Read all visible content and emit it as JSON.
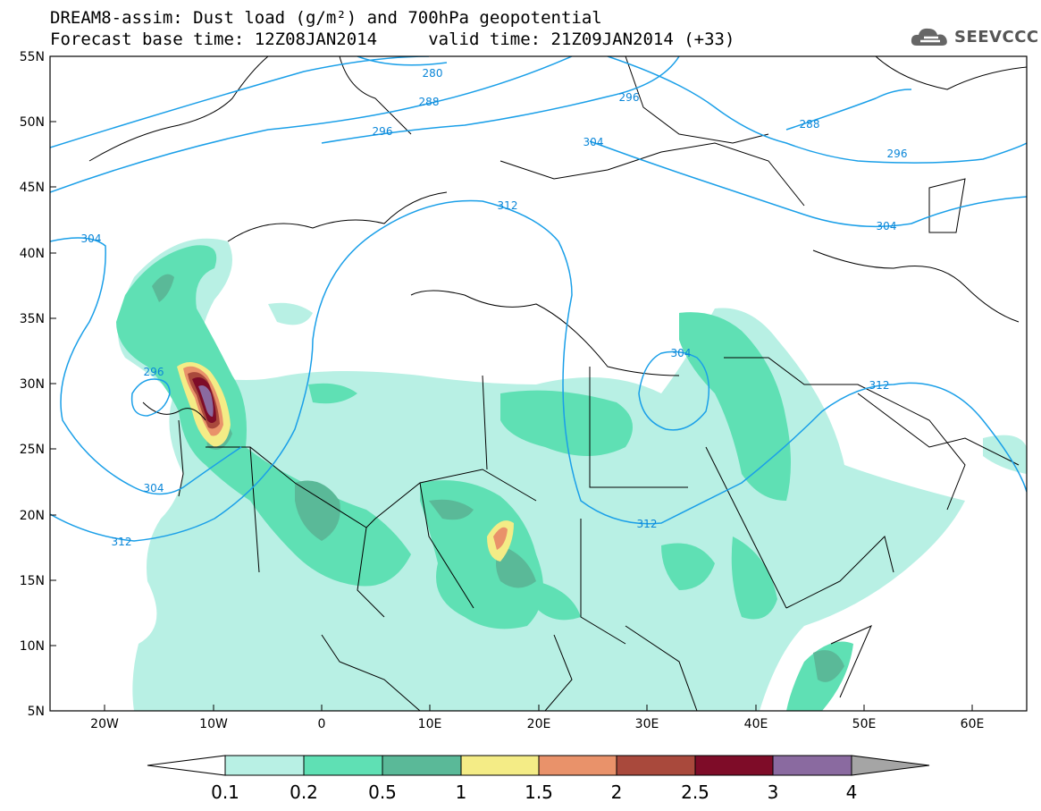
{
  "title": {
    "line1": "DREAM8-assim: Dust load (g/m²) and 700hPa geopotential",
    "line2": "Forecast base time: 12Z08JAN2014     valid time: 21Z09JAN2014 (+33)"
  },
  "logo": {
    "text": "SEEVCCC",
    "icon": "cloud-logo-icon"
  },
  "map": {
    "lat_labels": [
      "55N",
      "50N",
      "45N",
      "40N",
      "35N",
      "30N",
      "25N",
      "20N",
      "15N",
      "10N",
      "5N"
    ],
    "lon_labels": [
      "20W",
      "10W",
      "0",
      "10E",
      "20E",
      "30E",
      "40E",
      "50E",
      "60E"
    ],
    "contour_labels": [
      "280",
      "288",
      "296",
      "304",
      "312",
      "296",
      "288",
      "304",
      "296",
      "304",
      "312",
      "296",
      "304",
      "312",
      "312",
      "304",
      "312"
    ],
    "contour_color": "#1a9fe8"
  },
  "colorbar": {
    "labels": [
      "0.1",
      "0.2",
      "0.5",
      "1",
      "1.5",
      "2",
      "2.5",
      "3",
      "4"
    ],
    "colors": [
      "#ffffff",
      "#b8f0e4",
      "#5fe0b4",
      "#5ab998",
      "#f4ec86",
      "#e9926a",
      "#a9493c",
      "#7e0c28",
      "#8a6aa0",
      "#a5a5a5"
    ]
  }
}
